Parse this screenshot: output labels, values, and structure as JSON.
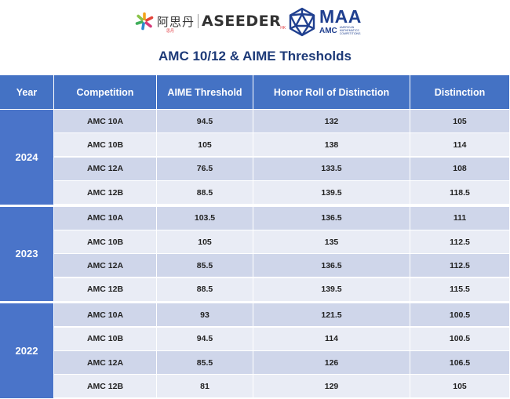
{
  "header": {
    "aseeder_logo": {
      "icon": "asterisk-logo-icon",
      "cn_text": "阿思丹",
      "en_text": "ASEEDER",
      "hk_tag": "HK",
      "cn_sub": "思丹"
    },
    "maa_logo": {
      "icon": "icosahedron-logo-icon",
      "big": "MAA",
      "sub": "AMC",
      "tiny": "AMERICAN MATHEMATICS COMPETITIONS"
    }
  },
  "title": "AMC 10/12 & AIME Thresholds",
  "table": {
    "headers": [
      "Year",
      "Competition",
      "AIME Threshold",
      "Honor Roll of Distinction",
      "Distinction"
    ],
    "groups": [
      {
        "year": "2024",
        "rows": [
          [
            "AMC 10A",
            "94.5",
            "132",
            "105"
          ],
          [
            "AMC 10B",
            "105",
            "138",
            "114"
          ],
          [
            "AMC 12A",
            "76.5",
            "133.5",
            "108"
          ],
          [
            "AMC 12B",
            "88.5",
            "139.5",
            "118.5"
          ]
        ]
      },
      {
        "year": "2023",
        "rows": [
          [
            "AMC 10A",
            "103.5",
            "136.5",
            "111"
          ],
          [
            "AMC 10B",
            "105",
            "135",
            "112.5"
          ],
          [
            "AMC 12A",
            "85.5",
            "136.5",
            "112.5"
          ],
          [
            "AMC 12B",
            "88.5",
            "139.5",
            "115.5"
          ]
        ]
      },
      {
        "year": "2022",
        "rows": [
          [
            "AMC 10A",
            "93",
            "121.5",
            "100.5"
          ],
          [
            "AMC 10B",
            "94.5",
            "114",
            "100.5"
          ],
          [
            "AMC 12A",
            "85.5",
            "126",
            "106.5"
          ],
          [
            "AMC 12B",
            "81",
            "129",
            "105"
          ]
        ]
      }
    ]
  },
  "colors": {
    "header_bg": "#4472c4",
    "row_dark": "#cfd6ea",
    "row_light": "#e9ecf5",
    "title": "#1d3a78"
  }
}
